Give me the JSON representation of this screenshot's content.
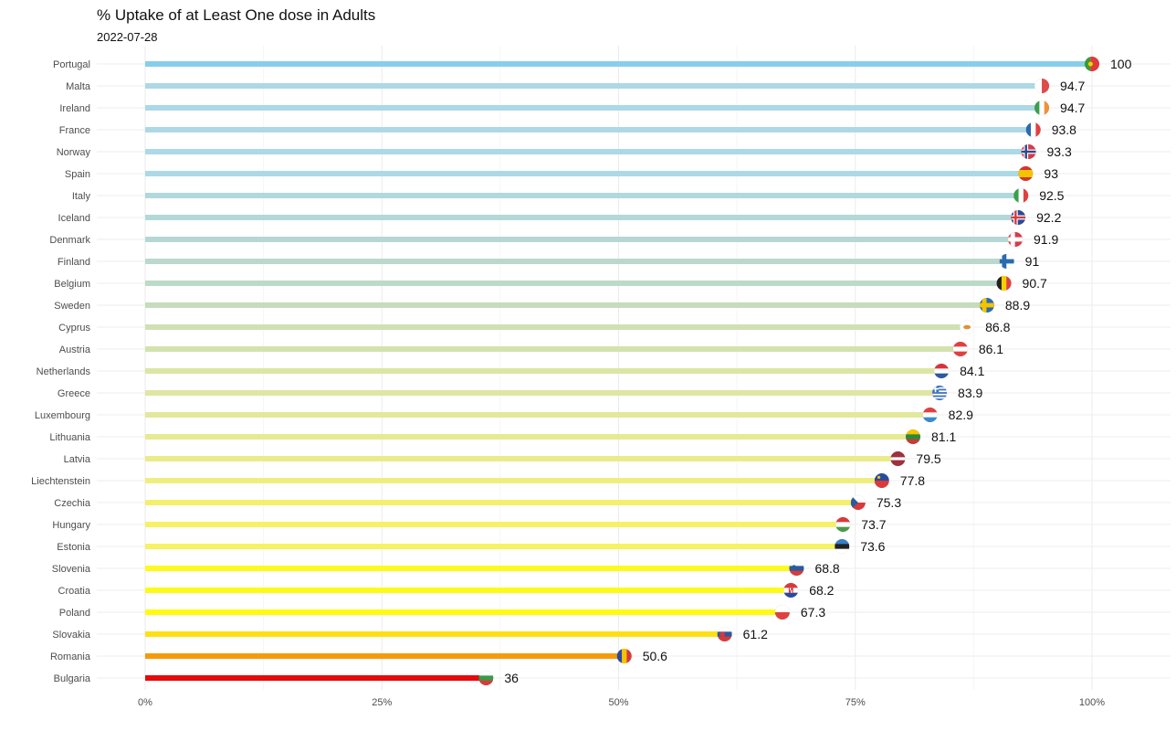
{
  "chart_data": {
    "type": "bar",
    "orientation": "horizontal",
    "title": "% Uptake of at Least One dose in Adults",
    "subtitle": "2022-07-28",
    "xlabel": "",
    "ylabel": "",
    "xlim": [
      0,
      100
    ],
    "x_ticks": [
      0,
      25,
      50,
      75,
      100
    ],
    "x_tick_labels": [
      "0%",
      "25%",
      "50%",
      "75%",
      "100%"
    ],
    "grid": true,
    "legend": "none",
    "categories": [
      "Portugal",
      "Malta",
      "Ireland",
      "France",
      "Norway",
      "Spain",
      "Italy",
      "Iceland",
      "Denmark",
      "Finland",
      "Belgium",
      "Sweden",
      "Cyprus",
      "Austria",
      "Netherlands",
      "Greece",
      "Luxembourg",
      "Lithuania",
      "Latvia",
      "Liechtenstein",
      "Czechia",
      "Hungary",
      "Estonia",
      "Slovenia",
      "Croatia",
      "Poland",
      "Slovakia",
      "Romania",
      "Bulgaria"
    ],
    "values": [
      100,
      94.7,
      94.7,
      93.8,
      93.3,
      93,
      92.5,
      92.2,
      91.9,
      91,
      90.7,
      88.9,
      86.8,
      86.1,
      84.1,
      83.9,
      82.9,
      81.1,
      79.5,
      77.8,
      75.3,
      73.7,
      73.6,
      68.8,
      68.2,
      67.3,
      61.2,
      50.6,
      36
    ],
    "value_labels": [
      "100",
      "94.7",
      "94.7",
      "93.8",
      "93.3",
      "93",
      "92.5",
      "92.2",
      "91.9",
      "91",
      "90.7",
      "88.9",
      "86.8",
      "86.1",
      "84.1",
      "83.9",
      "82.9",
      "81.1",
      "79.5",
      "77.8",
      "75.3",
      "73.7",
      "73.6",
      "68.8",
      "68.2",
      "67.3",
      "61.2",
      "50.6",
      "36"
    ],
    "bar_colors": [
      "#87ceeb",
      "#add8e6",
      "#add8e6",
      "#add8e6",
      "#add8e6",
      "#add8e6",
      "#b1d8dc",
      "#b3d8d8",
      "#b5d8d4",
      "#bad9cc",
      "#bcdac8",
      "#c6dcbc",
      "#d0e0b4",
      "#d4e2ae",
      "#dce6a4",
      "#dee6a2",
      "#e2e89c",
      "#e6ea92",
      "#eaec8a",
      "#eeee80",
      "#f4f06c",
      "#f6f264",
      "#f6f262",
      "#fdfa1e",
      "#fefa18",
      "#fffa10",
      "#fee012",
      "#f59a0a",
      "#e80a0a"
    ],
    "flags": [
      "flag-portugal-icon",
      "flag-malta-icon",
      "flag-ireland-icon",
      "flag-france-icon",
      "flag-norway-icon",
      "flag-spain-icon",
      "flag-italy-icon",
      "flag-iceland-icon",
      "flag-denmark-icon",
      "flag-finland-icon",
      "flag-belgium-icon",
      "flag-sweden-icon",
      "flag-cyprus-icon",
      "flag-austria-icon",
      "flag-netherlands-icon",
      "flag-greece-icon",
      "flag-luxembourg-icon",
      "flag-lithuania-icon",
      "flag-latvia-icon",
      "flag-liechtenstein-icon",
      "flag-czechia-icon",
      "flag-hungary-icon",
      "flag-estonia-icon",
      "flag-slovenia-icon",
      "flag-croatia-icon",
      "flag-poland-icon",
      "flag-slovakia-icon",
      "flag-romania-icon",
      "flag-bulgaria-icon"
    ]
  }
}
